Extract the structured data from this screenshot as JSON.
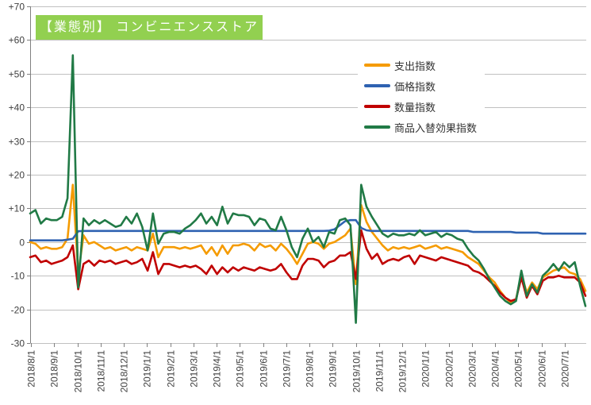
{
  "title": {
    "label": "【業態別】 コンビニエンスストア",
    "bg_color": "#92D050",
    "text_color": "#FFFFFF"
  },
  "legend": [
    {
      "label": "支出指数",
      "color": "#F59B00"
    },
    {
      "label": "価格指数",
      "color": "#2E62B1"
    },
    {
      "label": "数量指数",
      "color": "#C00000"
    },
    {
      "label": "商品入替効果指数",
      "color": "#217A46"
    }
  ],
  "axes": {
    "y_tick_labels": [
      "+70",
      "+60",
      "+50",
      "+40",
      "+30",
      "+20",
      "+10",
      "0",
      "-10",
      "-20",
      "-30"
    ],
    "x_tick_labels": [
      "2018/8/1",
      "2018/9/1",
      "2018/10/1",
      "2018/11/1",
      "2018/12/1",
      "2019/1/1",
      "2019/2/1",
      "2019/3/1",
      "2019/4/1",
      "2019/5/1",
      "2019/6/1",
      "2019/7/1",
      "2019/8/1",
      "2019/9/1",
      "2019/10/1",
      "2019/11/1",
      "2019/12/1",
      "2020/1/1",
      "2020/2/1",
      "2020/3/1",
      "2020/4/1",
      "2020/5/1",
      "2020/6/1",
      "2020/7/1"
    ]
  },
  "colors": {
    "grid": "#C0C0C0",
    "axis": "#808080",
    "tick_text": "#404040"
  },
  "chart_data": {
    "type": "line",
    "title": "【業態別】 コンビニエンスストア",
    "ylim": [
      -30,
      70
    ],
    "y_tick_interval": 10,
    "grid": true,
    "legend_position": "inside-top-right",
    "x_axis": "weekly dates, monthly tick labels 2018/8/1 - 2020/7/1",
    "x": [
      "2018/7/30",
      "2018/8/6",
      "2018/8/13",
      "2018/8/20",
      "2018/8/27",
      "2018/9/3",
      "2018/9/10",
      "2018/9/17",
      "2018/9/24",
      "2018/10/1",
      "2018/10/8",
      "2018/10/15",
      "2018/10/22",
      "2018/10/29",
      "2018/11/5",
      "2018/11/12",
      "2018/11/19",
      "2018/11/26",
      "2018/12/3",
      "2018/12/10",
      "2018/12/17",
      "2018/12/24",
      "2018/12/31",
      "2019/1/7",
      "2019/1/14",
      "2019/1/21",
      "2019/1/28",
      "2019/2/4",
      "2019/2/11",
      "2019/2/18",
      "2019/2/25",
      "2019/3/4",
      "2019/3/11",
      "2019/3/18",
      "2019/3/25",
      "2019/4/1",
      "2019/4/8",
      "2019/4/15",
      "2019/4/22",
      "2019/4/29",
      "2019/5/6",
      "2019/5/13",
      "2019/5/20",
      "2019/5/27",
      "2019/6/3",
      "2019/6/10",
      "2019/6/17",
      "2019/6/24",
      "2019/7/1",
      "2019/7/8",
      "2019/7/15",
      "2019/7/22",
      "2019/7/29",
      "2019/8/5",
      "2019/8/12",
      "2019/8/19",
      "2019/8/26",
      "2019/9/2",
      "2019/9/9",
      "2019/9/16",
      "2019/9/23",
      "2019/9/30",
      "2019/10/7",
      "2019/10/14",
      "2019/10/21",
      "2019/10/28",
      "2019/11/4",
      "2019/11/11",
      "2019/11/18",
      "2019/11/25",
      "2019/12/2",
      "2019/12/9",
      "2019/12/16",
      "2019/12/23",
      "2019/12/30",
      "2020/1/6",
      "2020/1/13",
      "2020/1/20",
      "2020/1/27",
      "2020/2/3",
      "2020/2/10",
      "2020/2/17",
      "2020/2/24",
      "2020/3/2",
      "2020/3/9",
      "2020/3/16",
      "2020/3/23",
      "2020/3/30",
      "2020/4/6",
      "2020/4/13",
      "2020/4/20",
      "2020/4/27",
      "2020/5/4",
      "2020/5/11",
      "2020/5/18",
      "2020/5/25",
      "2020/6/1",
      "2020/6/8",
      "2020/6/15",
      "2020/6/22",
      "2020/6/29",
      "2020/7/6",
      "2020/7/13",
      "2020/7/20",
      "2020/7/27"
    ],
    "series": [
      {
        "name": "支出指数",
        "color": "#F59B00",
        "values": [
          0,
          -0.5,
          -2,
          -1.5,
          -2,
          -2,
          -1.5,
          1,
          17,
          -9.5,
          2,
          -0.5,
          0,
          -1,
          -2,
          -1.5,
          -2.5,
          -2,
          -1.5,
          -2.5,
          -1.5,
          -2,
          -2.5,
          2.5,
          -4.5,
          -1.5,
          -1.5,
          -1.5,
          -2,
          -1.5,
          -2,
          -1.5,
          -1,
          -3.5,
          -1.5,
          -4,
          -1,
          -3.5,
          -1,
          -1,
          -0.5,
          -1,
          -2.5,
          -0.5,
          -1.5,
          -1,
          -2.5,
          -0.5,
          -2,
          -4,
          -6.5,
          -3.5,
          -0.5,
          0,
          -0.5,
          -2,
          -0.5,
          0,
          1,
          2,
          4,
          -12.5,
          11,
          6,
          3,
          1,
          -1,
          -2.5,
          -1.5,
          -2,
          -1.5,
          -2,
          -1.5,
          -1,
          -2,
          -1.5,
          -1,
          -2,
          -1.5,
          -2,
          -2.5,
          -3,
          -4.5,
          -5.5,
          -6.5,
          -8.5,
          -10.5,
          -12,
          -14.5,
          -16.5,
          -18,
          -17,
          -9.5,
          -15,
          -12,
          -14,
          -10.5,
          -9.5,
          -8.5,
          -8,
          -7.5,
          -9,
          -9.5,
          -11,
          -14.5
        ]
      },
      {
        "name": "価格指数",
        "color": "#2E62B1",
        "values": [
          0.5,
          0.5,
          0.5,
          0.5,
          0.5,
          0.5,
          0.5,
          0.7,
          1,
          3.2,
          3.3,
          3.3,
          3.3,
          3.3,
          3.3,
          3.3,
          3.3,
          3.3,
          3.3,
          3.3,
          3.3,
          3.3,
          3.3,
          3.3,
          3.3,
          3.3,
          3.3,
          3.3,
          3.3,
          3.3,
          3.3,
          3.3,
          3.3,
          3.3,
          3.3,
          3.3,
          3.3,
          3.3,
          3.3,
          3.3,
          3.3,
          3.3,
          3.3,
          3.3,
          3.3,
          3.3,
          3.3,
          3.3,
          3.3,
          3.3,
          3.3,
          3.3,
          3.3,
          3.3,
          3.3,
          3.3,
          3.4,
          3.8,
          5,
          6.2,
          6.5,
          6.5,
          4.2,
          3.5,
          3.3,
          3.3,
          3.3,
          3.3,
          3.3,
          3.3,
          3.3,
          3.3,
          3.3,
          3.3,
          3.3,
          3.3,
          3.3,
          3.3,
          3.3,
          3.3,
          3.3,
          3.3,
          3.3,
          3,
          3,
          3,
          3,
          3,
          3,
          3,
          3,
          2.8,
          2.8,
          2.8,
          2.8,
          2.8,
          2.5,
          2.5,
          2.5,
          2.5,
          2.5,
          2.5,
          2.5,
          2.5,
          2.5
        ]
      },
      {
        "name": "数量指数",
        "color": "#C00000",
        "values": [
          -4.5,
          -4,
          -6,
          -5.5,
          -6.5,
          -6,
          -5.5,
          -4.5,
          -1,
          -14,
          -6.5,
          -5.5,
          -7,
          -5.5,
          -6,
          -5.5,
          -6.5,
          -6,
          -5.5,
          -6.5,
          -6,
          -5,
          -8.5,
          -3,
          -9.5,
          -6.5,
          -6.5,
          -7,
          -7.5,
          -7,
          -7.5,
          -7,
          -8,
          -9.5,
          -7,
          -9.5,
          -7.5,
          -9,
          -7.5,
          -8.5,
          -7.5,
          -8,
          -8.5,
          -7.5,
          -8,
          -8.5,
          -8,
          -6.5,
          -9,
          -11,
          -11,
          -7,
          -5,
          -5,
          -5.5,
          -7.5,
          -6,
          -5.5,
          -4,
          -4,
          -3,
          -11,
          3.5,
          -2,
          -5,
          -3.5,
          -6.5,
          -5.5,
          -5,
          -5.5,
          -4.5,
          -4,
          -6.5,
          -4,
          -4.5,
          -5,
          -5.5,
          -4.5,
          -5,
          -5.5,
          -6,
          -6.5,
          -7,
          -8.5,
          -9,
          -10,
          -11.5,
          -13,
          -15,
          -16.5,
          -17.5,
          -17,
          -10.5,
          -16.5,
          -13,
          -15.5,
          -11.5,
          -10.5,
          -10.5,
          -10,
          -10.5,
          -10.5,
          -10.5,
          -12,
          -16
        ]
      },
      {
        "name": "商品入替効果指数",
        "color": "#217A46",
        "values": [
          8.5,
          9.5,
          5.5,
          7,
          6.5,
          6.5,
          7.5,
          13,
          55.5,
          -13.5,
          7,
          5,
          6.5,
          5.5,
          6.5,
          5.5,
          4.5,
          5,
          7.5,
          5.5,
          8.5,
          4.5,
          -2.5,
          8.5,
          -0.5,
          2.5,
          3,
          3,
          2.5,
          4,
          5,
          6.5,
          8.5,
          5.5,
          7.5,
          5,
          10.5,
          5.5,
          8.5,
          8,
          8,
          7.5,
          5,
          7,
          6.5,
          4,
          3.5,
          7.5,
          3.5,
          -1.5,
          -4.5,
          1,
          4,
          0,
          1.5,
          -1.5,
          3,
          2.5,
          6.5,
          7,
          5,
          -24,
          17,
          10.5,
          7.5,
          5,
          2.5,
          1.5,
          2.5,
          2,
          2,
          2.5,
          2,
          3.5,
          2,
          2.5,
          3,
          1.5,
          2.5,
          2,
          1,
          0.5,
          -2,
          -4,
          -5.5,
          -8,
          -11,
          -13.5,
          -16,
          -17.5,
          -18.5,
          -17.5,
          -8.5,
          -16,
          -12.5,
          -15,
          -10,
          -8.5,
          -6.5,
          -8.5,
          -6,
          -7.5,
          -6,
          -13,
          -19
        ]
      }
    ]
  }
}
